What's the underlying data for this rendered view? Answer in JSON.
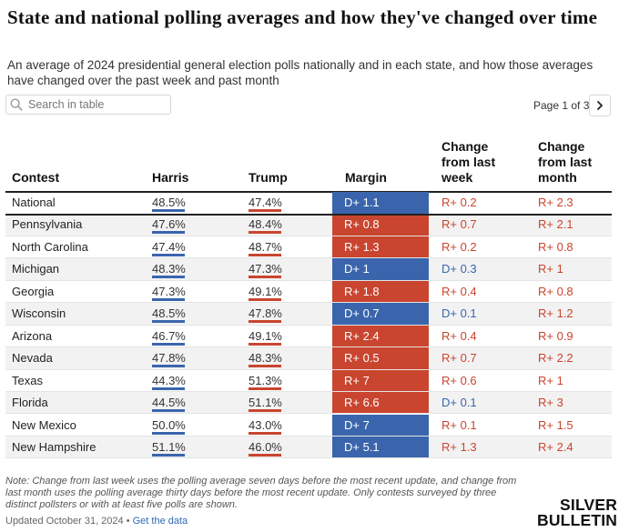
{
  "title": "State and national polling averages and how they've changed over time",
  "subtitle": "An average of 2024 presidential general election polls nationally and in each state, and how those averages have changed over the past week and past month",
  "search": {
    "placeholder": "Search in table",
    "icon": "search-icon"
  },
  "pagination": {
    "label": "Page 1 of 3",
    "next_icon": "chevron-right-icon"
  },
  "columns": {
    "contest": "Contest",
    "harris": "Harris",
    "trump": "Trump",
    "margin": "Margin",
    "week_line1": "Change",
    "week_line2": "from last",
    "week_line3": "week",
    "month_line1": "Change",
    "month_line2": "from last",
    "month_line3": "month"
  },
  "colors": {
    "dem": "#3a65ad",
    "rep": "#c9452f",
    "row_shade": "#f2f2f2"
  },
  "rows": [
    {
      "contest": "National",
      "harris": "48.5%",
      "trump": "47.4%",
      "margin": "D+ 1.1",
      "margin_party": "D",
      "week": "R+ 0.2",
      "week_party": "R",
      "month": "R+ 2.3",
      "month_party": "R"
    },
    {
      "contest": "Pennsylvania",
      "harris": "47.6%",
      "trump": "48.4%",
      "margin": "R+ 0.8",
      "margin_party": "R",
      "week": "R+ 0.7",
      "week_party": "R",
      "month": "R+ 2.1",
      "month_party": "R"
    },
    {
      "contest": "North Carolina",
      "harris": "47.4%",
      "trump": "48.7%",
      "margin": "R+ 1.3",
      "margin_party": "R",
      "week": "R+ 0.2",
      "week_party": "R",
      "month": "R+ 0.8",
      "month_party": "R"
    },
    {
      "contest": "Michigan",
      "harris": "48.3%",
      "trump": "47.3%",
      "margin": "D+ 1",
      "margin_party": "D",
      "week": "D+ 0.3",
      "week_party": "D",
      "month": "R+ 1",
      "month_party": "R"
    },
    {
      "contest": "Georgia",
      "harris": "47.3%",
      "trump": "49.1%",
      "margin": "R+ 1.8",
      "margin_party": "R",
      "week": "R+ 0.4",
      "week_party": "R",
      "month": "R+ 0.8",
      "month_party": "R"
    },
    {
      "contest": "Wisconsin",
      "harris": "48.5%",
      "trump": "47.8%",
      "margin": "D+ 0.7",
      "margin_party": "D",
      "week": "D+ 0.1",
      "week_party": "D",
      "month": "R+ 1.2",
      "month_party": "R"
    },
    {
      "contest": "Arizona",
      "harris": "46.7%",
      "trump": "49.1%",
      "margin": "R+ 2.4",
      "margin_party": "R",
      "week": "R+ 0.4",
      "week_party": "R",
      "month": "R+ 0.9",
      "month_party": "R"
    },
    {
      "contest": "Nevada",
      "harris": "47.8%",
      "trump": "48.3%",
      "margin": "R+ 0.5",
      "margin_party": "R",
      "week": "R+ 0.7",
      "week_party": "R",
      "month": "R+ 2.2",
      "month_party": "R"
    },
    {
      "contest": "Texas",
      "harris": "44.3%",
      "trump": "51.3%",
      "margin": "R+ 7",
      "margin_party": "R",
      "week": "R+ 0.6",
      "week_party": "R",
      "month": "R+ 1",
      "month_party": "R"
    },
    {
      "contest": "Florida",
      "harris": "44.5%",
      "trump": "51.1%",
      "margin": "R+ 6.6",
      "margin_party": "R",
      "week": "D+ 0.1",
      "week_party": "D",
      "month": "R+ 3",
      "month_party": "R"
    },
    {
      "contest": "New Mexico",
      "harris": "50.0%",
      "trump": "43.0%",
      "margin": "D+ 7",
      "margin_party": "D",
      "week": "R+ 0.1",
      "week_party": "R",
      "month": "R+ 1.5",
      "month_party": "R"
    },
    {
      "contest": "New Hampshire",
      "harris": "51.1%",
      "trump": "46.0%",
      "margin": "D+ 5.1",
      "margin_party": "D",
      "week": "R+ 1.3",
      "week_party": "R",
      "month": "R+ 2.4",
      "month_party": "R"
    }
  ],
  "note": "Note: Change from last week uses the polling average seven days before the most recent update, and change from last month uses the polling average thirty days before the most recent update. Only contests surveyed by three distinct pollsters or with at least five polls are shown.",
  "footer": {
    "updated": "Updated October 31, 2024 • ",
    "link": "Get the data"
  },
  "logo": {
    "line1": "SILVER",
    "line2": "BULLETIN"
  }
}
